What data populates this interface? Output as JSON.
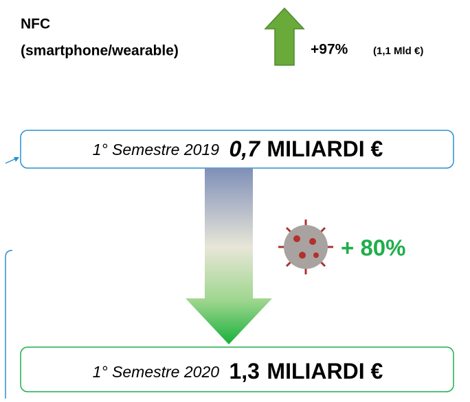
{
  "header": {
    "title": "NFC",
    "subtitle": "(smartphone/wearable)",
    "growth": "+97%",
    "growth_note": "(1,1 Mld €)"
  },
  "before": {
    "period": "1° Semestre 2019",
    "amount": "0,7",
    "unit": "MILIARDI €"
  },
  "change": {
    "label": "+ 80%"
  },
  "after": {
    "period": "1° Semestre 2020",
    "amount": "1,3",
    "unit": "MILIARDI €"
  }
}
